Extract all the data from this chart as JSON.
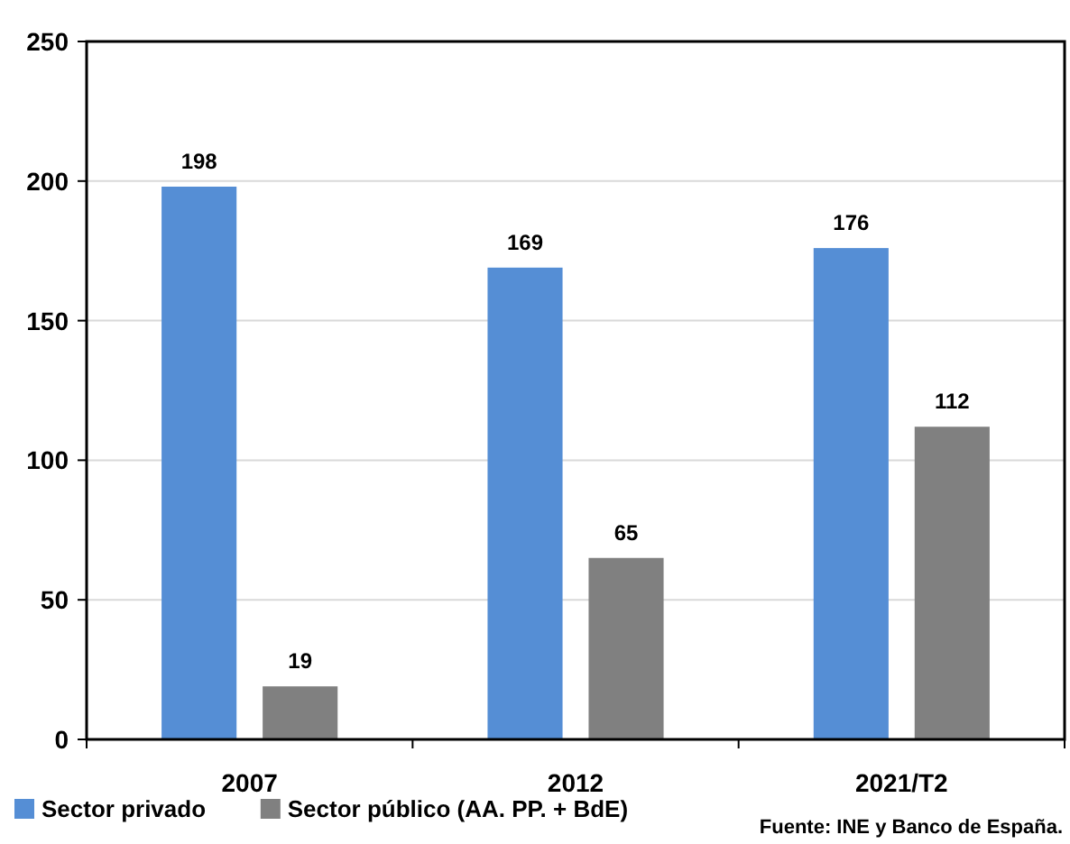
{
  "chart_data": {
    "type": "bar",
    "categories": [
      "2007",
      "2012",
      "2021/T2"
    ],
    "series": [
      {
        "name": "Sector privado",
        "color": "#558ed5",
        "values": [
          198,
          169,
          176
        ]
      },
      {
        "name": "Sector público (AA. PP. + BdE)",
        "color": "#808080",
        "values": [
          19,
          65,
          112
        ]
      }
    ],
    "ylim": [
      0,
      250
    ],
    "yticks": [
      0,
      50,
      100,
      150,
      200,
      250
    ],
    "grid": "y",
    "legend": "bottom left",
    "data_labels": true,
    "annotations": [
      "Fuente: INE y Banco de España."
    ]
  }
}
